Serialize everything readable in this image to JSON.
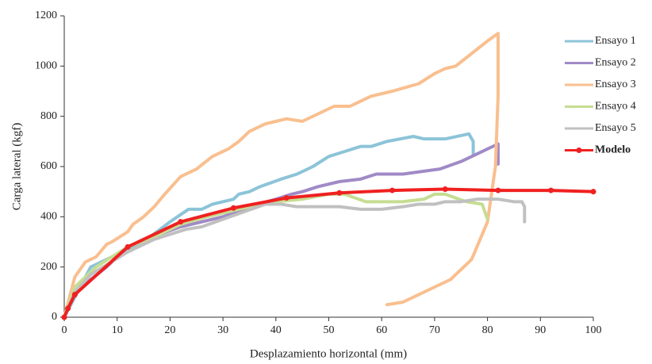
{
  "chart_data": {
    "type": "line",
    "xlabel": "Desplazamiento  horizontal  (mm)",
    "ylabel": "Carga lateral   (kgf)",
    "xlim": [
      0,
      100
    ],
    "xticks": [
      0,
      10,
      20,
      30,
      40,
      50,
      60,
      70,
      80,
      90,
      100
    ],
    "ylim": [
      0,
      1200
    ],
    "yticks": [
      0,
      200,
      400,
      600,
      800,
      1000,
      1200
    ],
    "grid": false,
    "legend": "right",
    "series": [
      {
        "name": "Ensayo 1",
        "color": "#8cc4d8",
        "x": [
          0,
          5,
          10,
          15,
          20,
          23.5,
          26,
          28,
          32,
          33,
          35,
          37,
          41,
          44,
          47,
          50,
          53,
          56,
          58,
          61,
          66,
          68,
          72,
          76.5,
          77.3,
          77.3
        ],
        "values": [
          0,
          200,
          250,
          300,
          380,
          430,
          430,
          450,
          470,
          490,
          500,
          520,
          550,
          570,
          600,
          640,
          660,
          680,
          680,
          700,
          720,
          710,
          710,
          730,
          700,
          650
        ]
      },
      {
        "name": "Ensayo 2",
        "color": "#a08ac6",
        "x": [
          0,
          2,
          8,
          12,
          18,
          22,
          30,
          35,
          40,
          43,
          45,
          48,
          52,
          56,
          59,
          64,
          71,
          75,
          78,
          82,
          82
        ],
        "values": [
          0,
          100,
          200,
          280,
          330,
          360,
          400,
          440,
          470,
          490,
          500,
          520,
          540,
          550,
          570,
          570,
          590,
          620,
          650,
          690,
          610
        ]
      },
      {
        "name": "Ensayo 3",
        "color": "#f9bf8f",
        "x": [
          0,
          2,
          4,
          6,
          8,
          9,
          12,
          13,
          15,
          17,
          19,
          22,
          25,
          28,
          31,
          33,
          35,
          38,
          40,
          42,
          45,
          48,
          51,
          54,
          56,
          58,
          62,
          67,
          70,
          72,
          74,
          77,
          80,
          82,
          82,
          82,
          81.5,
          80,
          77,
          73,
          64,
          61
        ],
        "values": [
          0,
          160,
          220,
          240,
          290,
          300,
          340,
          370,
          400,
          440,
          490,
          560,
          590,
          640,
          670,
          700,
          740,
          770,
          780,
          790,
          780,
          810,
          840,
          840,
          860,
          880,
          900,
          930,
          970,
          990,
          1000,
          1050,
          1100,
          1130,
          1000,
          880,
          600,
          380,
          230,
          150,
          60,
          50
        ]
      },
      {
        "name": "Ensayo 4",
        "color": "#c6dd92",
        "x": [
          0,
          2,
          6,
          12,
          17,
          22,
          27,
          31,
          35,
          40,
          45,
          50,
          53,
          57,
          64,
          68,
          70,
          72,
          76,
          79,
          80
        ],
        "values": [
          0,
          120,
          200,
          280,
          320,
          370,
          400,
          420,
          440,
          460,
          470,
          490,
          490,
          460,
          460,
          470,
          490,
          490,
          460,
          450,
          390
        ]
      },
      {
        "name": "Ensayo 5",
        "color": "#c0c0c0",
        "x": [
          0,
          2,
          5,
          12,
          17,
          20,
          23,
          26,
          30,
          34,
          38,
          41,
          44,
          52,
          56,
          60,
          64,
          67,
          70,
          72,
          75,
          78,
          82,
          85,
          86.5,
          87,
          87
        ],
        "values": [
          0,
          100,
          170,
          260,
          310,
          330,
          350,
          360,
          390,
          420,
          450,
          450,
          440,
          440,
          430,
          430,
          440,
          450,
          450,
          460,
          460,
          470,
          470,
          460,
          460,
          440,
          380
        ]
      },
      {
        "name": "Modelo",
        "color": "#f02020",
        "x": [
          0,
          0.7,
          2,
          12,
          22,
          32,
          42,
          52,
          62,
          72,
          82,
          92,
          100
        ],
        "values": [
          0,
          35,
          90,
          280,
          380,
          435,
          475,
          495,
          505,
          510,
          505,
          505,
          500
        ]
      }
    ]
  }
}
